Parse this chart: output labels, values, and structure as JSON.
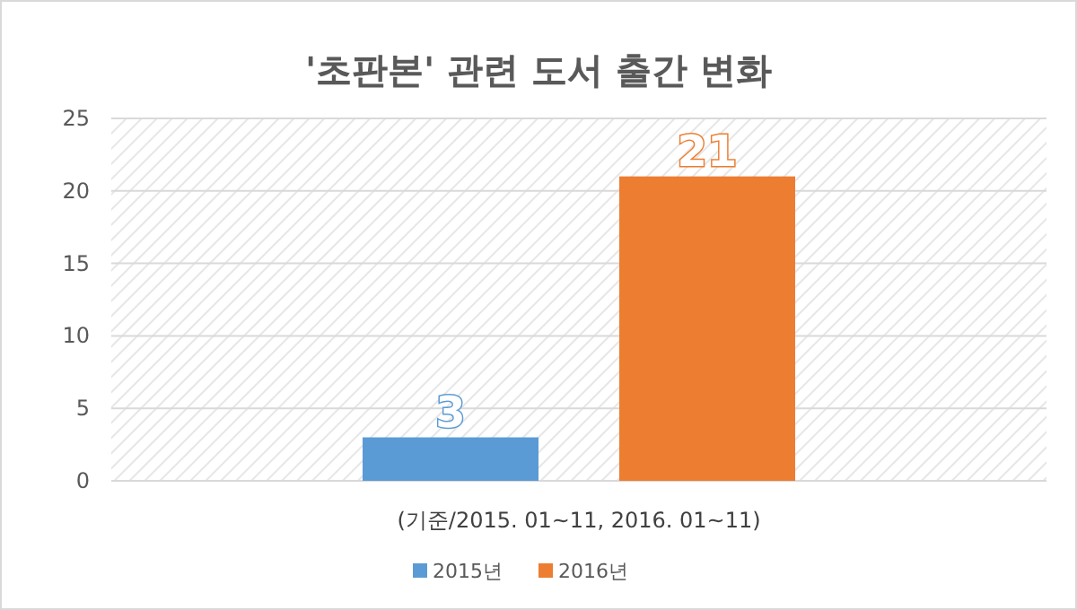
{
  "chart_data": {
    "type": "bar",
    "title": "'초판본' 관련 도서 출간 변화",
    "xlabel": "(기준/2015. 01~11, 2016. 01~11)",
    "categories": [
      null
    ],
    "series": [
      {
        "name": "2015년",
        "color": "#5b9bd5",
        "values": [
          3
        ]
      },
      {
        "name": "2016년",
        "color": "#ed7d31",
        "values": [
          21
        ]
      }
    ],
    "ylim": [
      0,
      25
    ],
    "yticks": [
      0,
      5,
      10,
      15,
      20,
      25
    ],
    "grid": "y",
    "legend": "bottom",
    "data_labels": true
  }
}
